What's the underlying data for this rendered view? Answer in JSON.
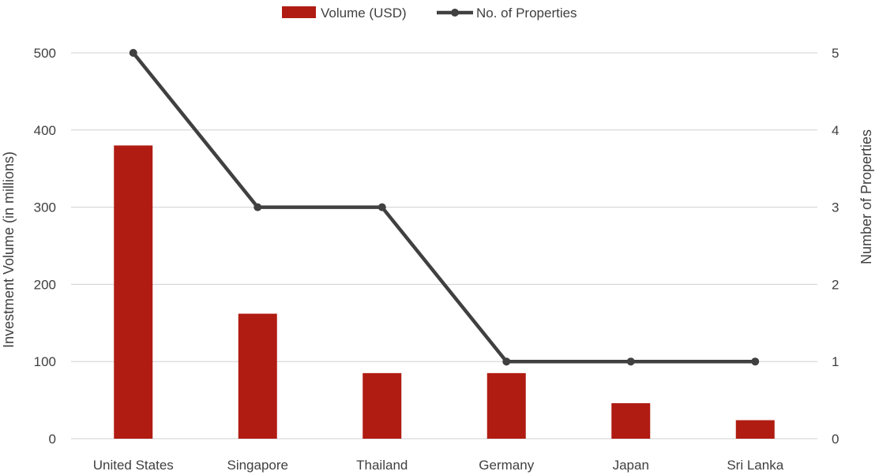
{
  "chart_data": {
    "type": "bar",
    "categories": [
      "United States",
      "Singapore",
      "Thailand",
      "Germany",
      "Japan",
      "Sri Lanka"
    ],
    "series": [
      {
        "name": "Volume (USD)",
        "type": "bar",
        "axis": "left",
        "color": "#b01c12",
        "values": [
          380,
          162,
          85,
          85,
          46,
          24
        ]
      },
      {
        "name": "No. of Properties",
        "type": "line",
        "axis": "right",
        "color": "#404040",
        "values": [
          5,
          3,
          3,
          1,
          1,
          1
        ]
      }
    ],
    "ylabel": "Investment Volume (in millions)",
    "y2label": "Number of Properties",
    "ylim": [
      0,
      500
    ],
    "y2lim": [
      0,
      5
    ],
    "yticks": [
      "0",
      "100",
      "200",
      "300",
      "400",
      "500"
    ],
    "y2ticks": [
      "0",
      "1",
      "2",
      "3",
      "4",
      "5"
    ],
    "grid": true,
    "legend": "top-center"
  }
}
